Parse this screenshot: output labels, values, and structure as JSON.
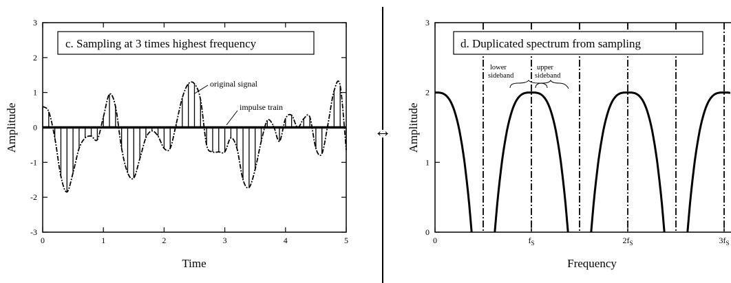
{
  "divider_symbol": "↔",
  "chart_data": [
    {
      "type": "line",
      "title": "c.  Sampling at 3 times highest frequency",
      "xlabel": "Time",
      "ylabel": "Amplitude",
      "xlim": [
        0,
        5
      ],
      "ylim": [
        -3,
        3
      ],
      "x_ticks": [
        "0",
        "1",
        "2",
        "3",
        "4",
        "5"
      ],
      "y_ticks": [
        "-3",
        "-2",
        "-1",
        "0",
        "1",
        "2",
        "3"
      ],
      "grid": false,
      "series": [
        {
          "name": "original signal",
          "x": [
            0.0,
            0.1,
            0.2,
            0.3,
            0.4,
            0.5,
            0.6,
            0.7,
            0.8,
            0.9,
            1.0,
            1.1,
            1.2,
            1.3,
            1.4,
            1.5,
            1.6,
            1.7,
            1.8,
            1.9,
            2.0,
            2.1,
            2.2,
            2.3,
            2.4,
            2.5,
            2.6,
            2.7,
            2.8,
            2.9,
            3.0,
            3.1,
            3.2,
            3.3,
            3.4,
            3.5,
            3.6,
            3.7,
            3.8,
            3.9,
            4.0,
            4.1,
            4.2,
            4.3,
            4.4,
            4.5,
            4.6,
            4.7,
            4.8,
            4.9,
            5.0
          ],
          "y": [
            0.6,
            0.45,
            -0.3,
            -1.4,
            -1.85,
            -1.3,
            -0.6,
            -0.3,
            -0.25,
            -0.35,
            0.3,
            0.95,
            0.6,
            -0.6,
            -1.3,
            -1.45,
            -0.9,
            -0.3,
            -0.1,
            -0.25,
            -0.6,
            -0.6,
            0.1,
            0.85,
            1.25,
            1.25,
            0.8,
            -0.5,
            -0.7,
            -0.7,
            -0.7,
            -0.3,
            -0.6,
            -1.5,
            -1.72,
            -1.2,
            -0.4,
            0.2,
            0.05,
            -0.4,
            0.25,
            0.35,
            0.0,
            0.25,
            0.3,
            -0.6,
            -0.75,
            0.1,
            1.05,
            1.2,
            -0.65
          ]
        },
        {
          "name": "impulse train",
          "style": "vertical stems from 0 at every sample"
        }
      ],
      "annotations": [
        "original signal",
        "impulse train"
      ]
    },
    {
      "type": "line",
      "title": "d.  Duplicated spectrum from sampling",
      "xlabel": "Frequency",
      "ylabel": "Amplitude",
      "ylim": [
        0,
        3
      ],
      "x_ticks": [
        "0",
        "f",
        "2f",
        "3f"
      ],
      "x_tick_subscript": "S",
      "y_ticks": [
        "0",
        "1",
        "2",
        "3"
      ],
      "grid": false,
      "lobe_peak": 2.0,
      "lobe_centers": [
        0,
        1,
        2,
        3
      ],
      "lobe_half_width": 0.38,
      "dashed_lines_at": [
        0.5,
        1,
        1.5,
        2,
        2.5,
        3
      ],
      "annotations": {
        "lower_sideband": [
          "lower",
          "sideband"
        ],
        "upper_sideband": [
          "upper",
          "sideband"
        ]
      }
    }
  ]
}
